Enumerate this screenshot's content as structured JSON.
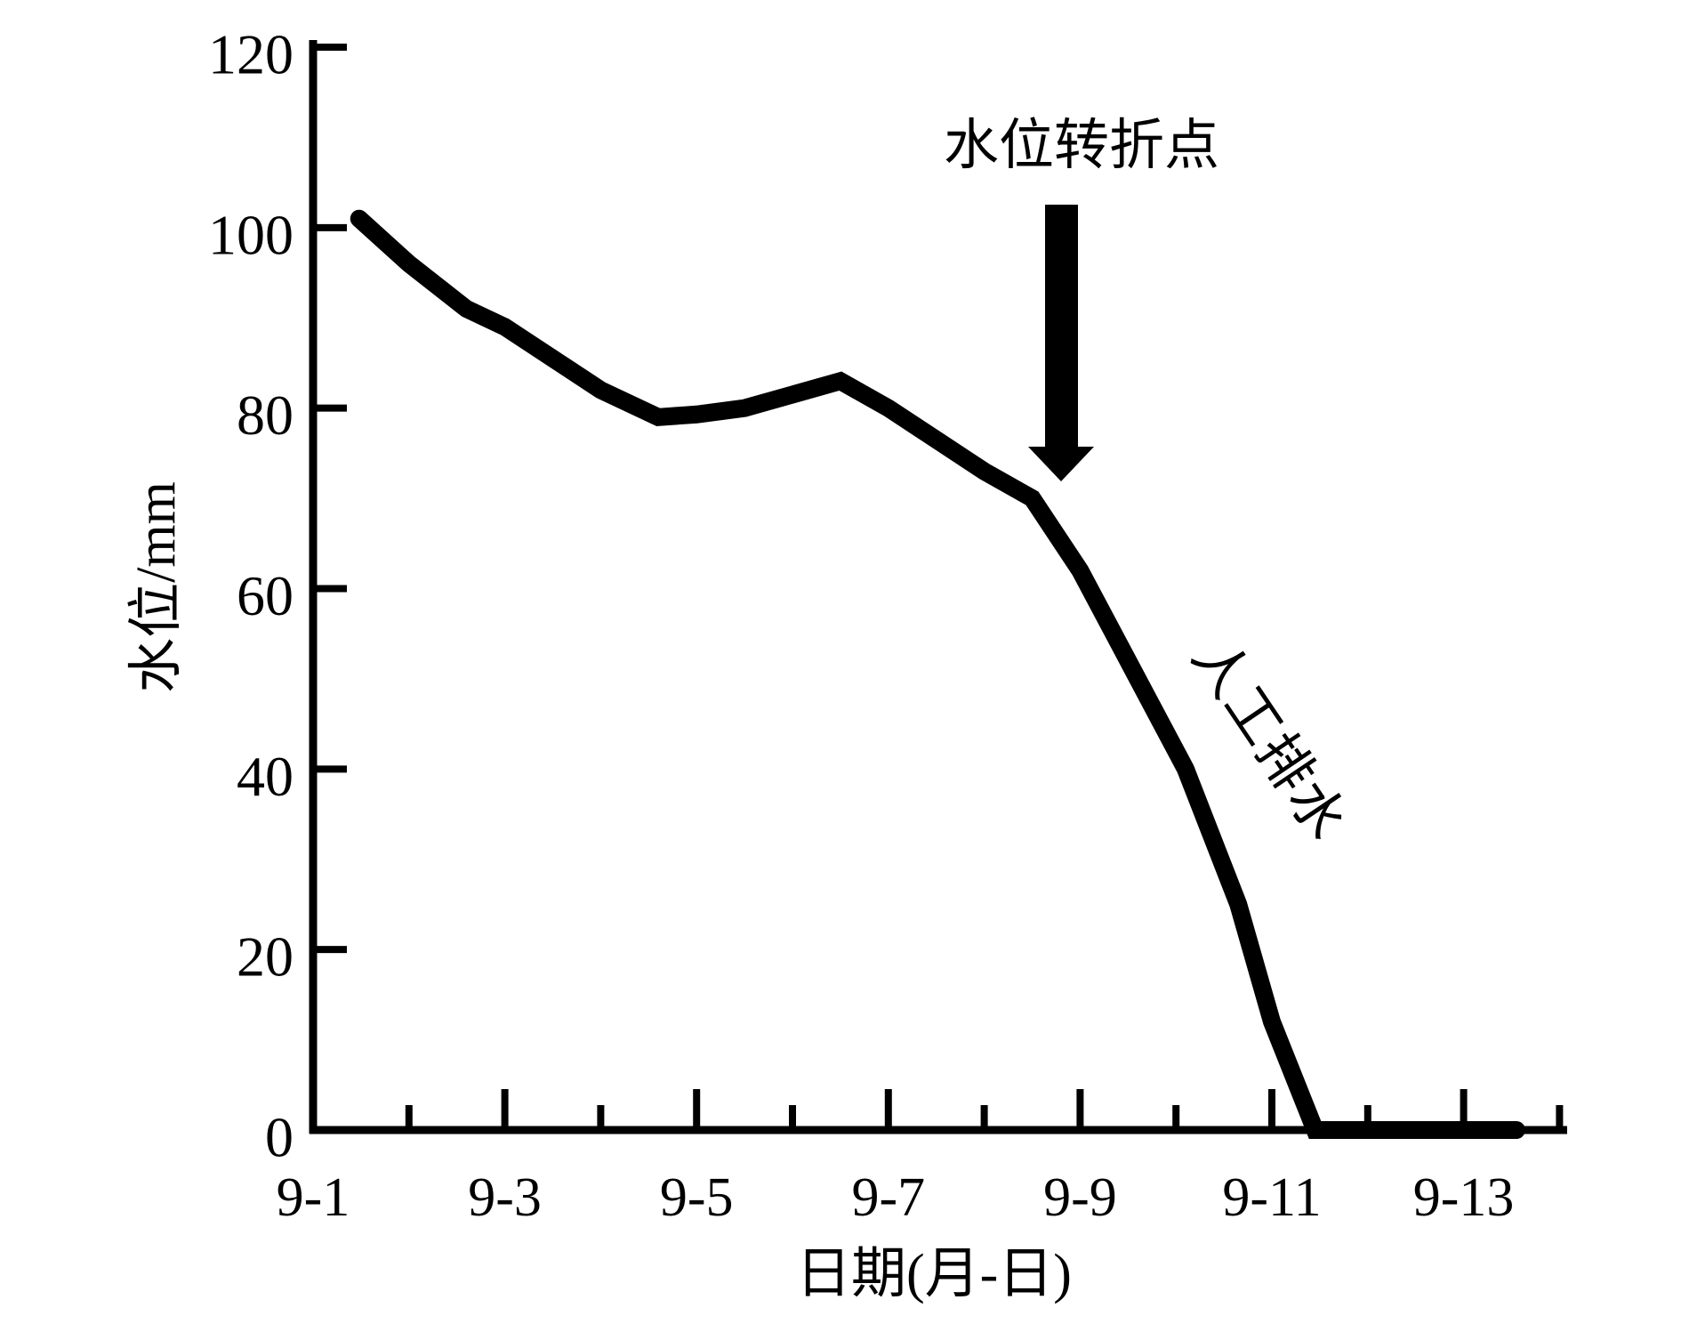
{
  "chart_data": {
    "type": "line",
    "xlabel": "日期(月-日)",
    "ylabel": "水位/mm",
    "x_unit_note": "month-day in September",
    "xlim_days": [
      1,
      14.1
    ],
    "ylim": [
      0,
      120
    ],
    "y_ticks": [
      0,
      20,
      40,
      60,
      80,
      100,
      120
    ],
    "x_tick_labels": [
      "9-1",
      "9-3",
      "9-5",
      "9-7",
      "9-9",
      "9-11",
      "9-13"
    ],
    "x_tick_label_days": [
      1,
      3,
      5,
      7,
      9,
      11,
      13
    ],
    "x_major_tick_days": [
      3,
      5,
      7,
      9,
      11,
      13
    ],
    "x_minor_tick_days": [
      2,
      4,
      6,
      8,
      10,
      12,
      14
    ],
    "grid": false,
    "legend": "none",
    "series": [
      {
        "name": "水位",
        "x_days": [
          1.48,
          2.0,
          2.6,
          3.0,
          3.5,
          4.0,
          4.6,
          5.0,
          5.5,
          6.0,
          6.5,
          7.0,
          7.5,
          8.0,
          8.5,
          9.0,
          9.45,
          10.1,
          10.65,
          11.0,
          11.45,
          12.0,
          13.0,
          13.55
        ],
        "values": [
          101,
          96,
          91,
          89,
          85.5,
          82,
          79,
          79.3,
          80,
          81.5,
          83,
          80,
          76.5,
          73,
          70,
          62,
          53,
          40,
          25,
          12,
          0,
          0,
          0,
          0
        ]
      }
    ],
    "annotations": [
      {
        "text": "水位转折点",
        "kind": "label-with-down-arrow",
        "arrow_points_to": {
          "day": 8.5,
          "value": 70
        }
      },
      {
        "text": "人工排水",
        "kind": "rotated-label-along-line",
        "near": {
          "day": 10.3,
          "value": 45
        }
      }
    ]
  }
}
